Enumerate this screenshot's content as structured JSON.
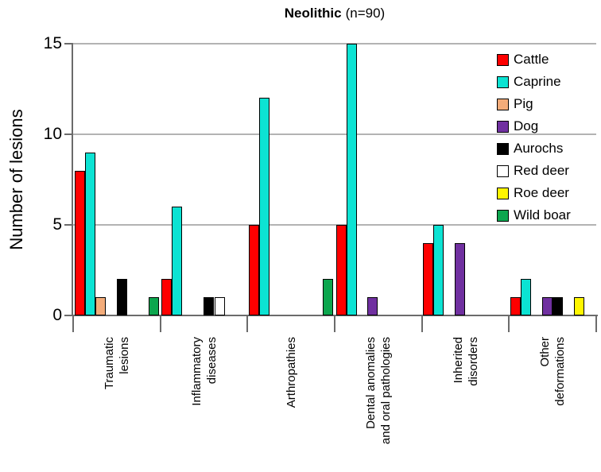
{
  "title": {
    "bold": "Neolithic",
    "rest": "(n=90)"
  },
  "y_axis": {
    "label": "Number of lesions"
  },
  "chart_data": {
    "type": "bar",
    "title": "Neolithic (n=90)",
    "xlabel": "",
    "ylabel": "Number of lesions",
    "ylim": [
      0,
      15
    ],
    "yticks": [
      0,
      5,
      10,
      15
    ],
    "grid": "horizontal",
    "legend_position": "right-overlay",
    "categories": [
      "Traumatic lesions",
      "Inflammatory diseases",
      "Arthropathies",
      "Dental anomalies and oral pathologies",
      "Inherited disorders",
      "Other deformations"
    ],
    "category_label_lines": [
      [
        "Traumatic",
        "lesions"
      ],
      [
        "Inflammatory",
        "diseases"
      ],
      [
        "Arthropathies"
      ],
      [
        "Dental anomalies",
        "and oral pathologies"
      ],
      [
        "Inherited",
        "disorders"
      ],
      [
        "Other",
        "deformations"
      ]
    ],
    "series": [
      {
        "name": "Cattle",
        "color": "#fe0000",
        "values": [
          8,
          2,
          5,
          5,
          4,
          1
        ]
      },
      {
        "name": "Caprine",
        "color": "#0ce3d3",
        "values": [
          9,
          6,
          12,
          15,
          5,
          2
        ]
      },
      {
        "name": "Pig",
        "color": "#f3ac7a",
        "values": [
          1,
          0,
          0,
          0,
          0,
          0
        ]
      },
      {
        "name": "Dog",
        "color": "#7030a0",
        "values": [
          0,
          0,
          0,
          1,
          4,
          1
        ]
      },
      {
        "name": "Aurochs",
        "color": "#000000",
        "values": [
          2,
          1,
          0,
          0,
          0,
          1
        ]
      },
      {
        "name": "Red deer",
        "color": "#ffffff",
        "values": [
          0,
          1,
          0,
          0,
          0,
          0
        ]
      },
      {
        "name": "Roe deer",
        "color": "#fff600",
        "values": [
          0,
          0,
          0,
          0,
          0,
          1
        ]
      },
      {
        "name": "Wild boar",
        "color": "#0ca64e",
        "values": [
          1,
          0,
          2,
          0,
          0,
          0
        ]
      }
    ],
    "total_n": 90
  },
  "colors": {
    "gridline": "#b3b3b3",
    "axis": "#6b6b6b",
    "bar_border": "#000000",
    "legend_background": "#ffffff"
  }
}
